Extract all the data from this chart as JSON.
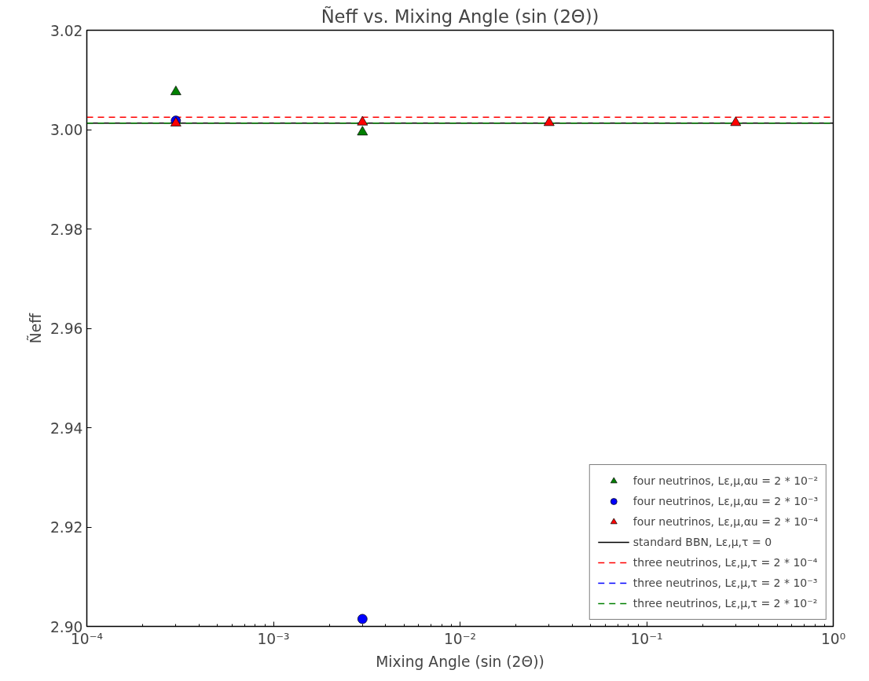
{
  "chart_data": {
    "type": "scatter",
    "title": "Ñeff vs. Mixing Angle (sin (2Θ))",
    "xlabel": "Mixing Angle (sin (2Θ))",
    "ylabel": "Ñeff",
    "log": "x",
    "grid": false,
    "legend": "bottom right",
    "xlim": [
      0.0001,
      1
    ],
    "xticks": [
      {
        "value": 0.0001,
        "label": "10⁻⁴"
      },
      {
        "value": 0.001,
        "label": "10⁻³"
      },
      {
        "value": 0.01,
        "label": "10⁻²"
      },
      {
        "value": 0.1,
        "label": "10⁻¹"
      },
      {
        "value": 1,
        "label": "10⁰"
      }
    ],
    "ylim": [
      2.9,
      3.02
    ],
    "yticks": [
      {
        "value": 2.9,
        "label": "2.90"
      },
      {
        "value": 2.92,
        "label": "2.92"
      },
      {
        "value": 2.94,
        "label": "2.94"
      },
      {
        "value": 2.96,
        "label": "2.96"
      },
      {
        "value": 2.98,
        "label": "2.98"
      },
      {
        "value": 3.0,
        "label": "3.00"
      },
      {
        "value": 3.02,
        "label": "3.02"
      }
    ],
    "series": [
      {
        "name": "four neutrinos, Lε,μ,αu = 2 * 10⁻²",
        "color": "#008000",
        "marker": "triangle",
        "x": [
          0.0003,
          0.003
        ],
        "values": [
          3.0076,
          2.9995
        ]
      },
      {
        "name": "four neutrinos, Lε,μ,αu = 2 * 10⁻³",
        "color": "#0000ff",
        "marker": "circle",
        "x": [
          0.0003,
          0.003
        ],
        "values": [
          3.0018,
          2.9015
        ]
      },
      {
        "name": "four neutrinos, Lε,μ,αu = 2 * 10⁻⁴",
        "color": "#ff0000",
        "marker": "triangle",
        "x": [
          0.0003,
          0.003,
          0.03,
          0.3
        ],
        "values": [
          3.0013,
          3.0015,
          3.0014,
          3.0014
        ]
      },
      {
        "type": "line",
        "name": "standard BBN, Lε,μ,τ = 0",
        "color": "#000000",
        "line_style": "solid",
        "x": [
          0.0001,
          1
        ],
        "values": [
          3.0013,
          3.0013
        ]
      },
      {
        "type": "line",
        "name": "three neutrinos, Lε,μ,τ = 2 * 10⁻⁴",
        "color": "#ff0000",
        "line_style": "dashed",
        "x": [
          0.0001,
          1
        ],
        "values": [
          3.0025,
          3.0025
        ]
      },
      {
        "type": "line",
        "name": "three neutrinos, Lε,μ,τ = 2 * 10⁻³",
        "color": "#0000ff",
        "line_style": "dashed",
        "values": [
          null,
          null
        ]
      },
      {
        "type": "line",
        "name": "three neutrinos, Lε,μ,τ = 2 * 10⁻²",
        "color": "#008000",
        "line_style": "dashed",
        "x": [
          0.0001,
          1
        ],
        "values": [
          3.0013,
          3.0013
        ]
      }
    ]
  }
}
